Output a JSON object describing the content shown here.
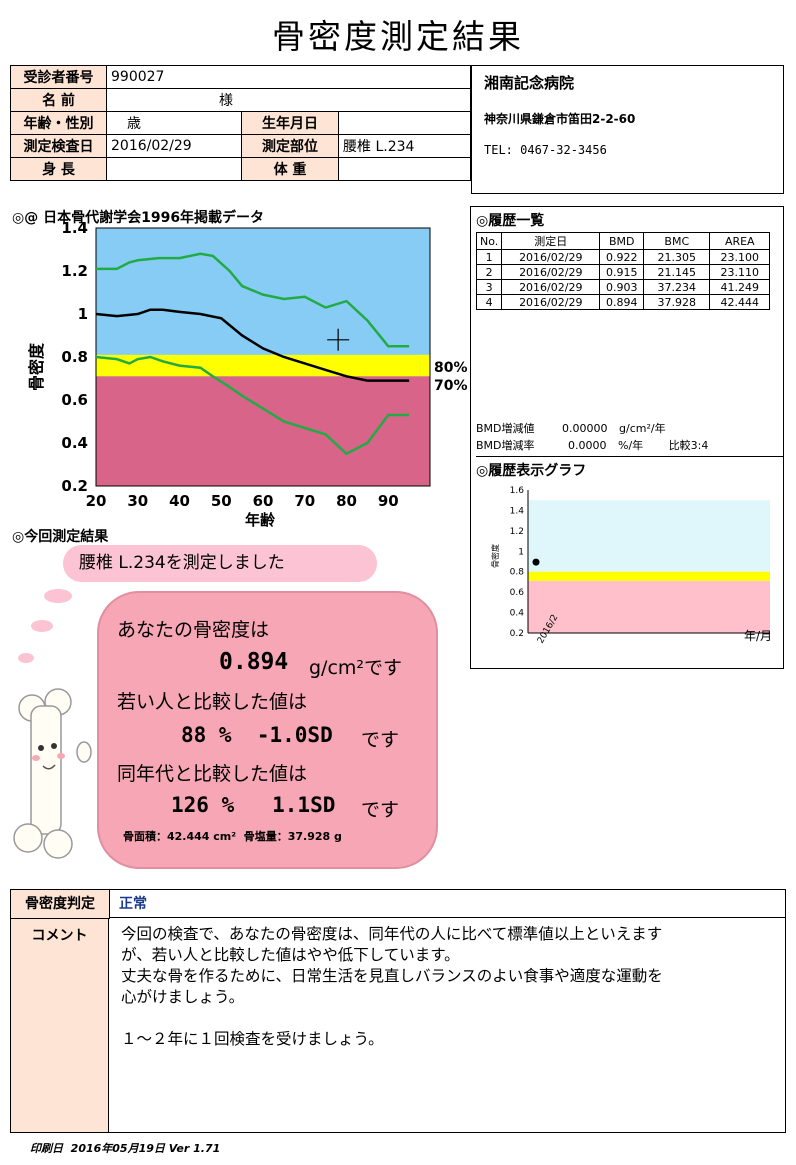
{
  "title": "骨密度測定結果",
  "patient": {
    "id_label": "受診者番号",
    "id_value": "990027",
    "name_label": "名 前",
    "name_suffix": "様",
    "age_label": "年齢・性別",
    "age_value": "歳",
    "dob_label": "生年月日",
    "dob_value": "",
    "date_label": "測定検査日",
    "date_value": "2016/02/29",
    "site_label": "測定部位",
    "site_value": "腰椎 L.234",
    "height_label": "身 長",
    "height_value": "",
    "weight_label": "体 重",
    "weight_value": ""
  },
  "hospital": {
    "name": "湘南記念病院",
    "address": "神奈川県鎌倉市笛田2-2-60",
    "tel": "TEL: 0467-32-3456"
  },
  "main_chart": {
    "title": "◎@ 日本骨代謝学会1996年掲載データ",
    "ylabel": "骨密度",
    "xlabel": "年齢",
    "band_80": "80%",
    "band_70": "70%"
  },
  "history": {
    "title": "◎履歴一覧",
    "headers": [
      "No.",
      "測定日",
      "BMD",
      "BMC",
      "AREA"
    ],
    "rows": [
      [
        "1",
        "2016/02/29",
        "0.922",
        "21.305",
        "23.100"
      ],
      [
        "2",
        "2016/02/29",
        "0.915",
        "21.145",
        "23.110"
      ],
      [
        "3",
        "2016/02/29",
        "0.903",
        "37.234",
        "41.249"
      ],
      [
        "4",
        "2016/02/29",
        "0.894",
        "37.928",
        "42.444"
      ]
    ],
    "bmd_change_label": "BMD増減値",
    "bmd_change_value": "0.00000",
    "bmd_change_unit": "g/cm²/年",
    "bmd_rate_label": "BMD増減率",
    "bmd_rate_value": "0.0000",
    "bmd_rate_unit": "%/年",
    "ratio": "比較3:4"
  },
  "history_chart": {
    "title": "◎履歴表示グラフ",
    "ylabel": "骨密度",
    "xunit": "年/月",
    "xtick": "2016/2"
  },
  "result": {
    "section": "◎今回測定結果",
    "measured": "腰椎 L.234を測定しました",
    "line1": "あなたの骨密度は",
    "bmd": "0.894",
    "bmd_unit": "g/cm²です",
    "line2": "若い人と比較した値は",
    "young": "88 %  -1.0SD",
    "young_suffix": "です",
    "line3": "同年代と比較した値は",
    "age": "126 %   1.1SD",
    "age_suffix": "です",
    "area": "骨面積：42.444 cm²  骨塩量：37.928 g"
  },
  "judgement": {
    "label": "骨密度判定",
    "value": "正常",
    "comment_label": "コメント",
    "comment": "今回の検査で、あなたの骨密度は、同年代の人に比べて標準値以上といえます\nが、若い人と比較した値はやや低下しています。\n丈夫な骨を作るために、日常生活を見直しバランスのよい食事や適度な運動を\n心がけましょう。\n\n１～２年に１回検査を受けましょう。"
  },
  "footer": "印刷日  2016年05月19日 Ver 1.71",
  "chart_data": [
    {
      "type": "line",
      "title": "日本骨代謝学会1996年掲載データ",
      "xlabel": "年齢",
      "ylabel": "骨密度",
      "xlim": [
        20,
        100
      ],
      "ylim": [
        0.2,
        1.4
      ],
      "x_ticks": [
        20,
        30,
        40,
        50,
        60,
        70,
        80,
        90
      ],
      "y_ticks": [
        0.2,
        0.4,
        0.6,
        0.8,
        1,
        1.2,
        1.4
      ],
      "bands": [
        {
          "name": "80%",
          "from": 0.71,
          "to": 0.81,
          "color": "#ffff00"
        },
        {
          "name": "70%",
          "from": 0.2,
          "to": 0.71,
          "color": "#d8648a"
        }
      ],
      "series": [
        {
          "color": "#22aa44",
          "x": [
            20,
            25,
            28,
            30,
            35,
            40,
            45,
            48,
            52,
            55,
            60,
            65,
            70,
            75,
            80,
            85,
            90,
            95
          ],
          "y": [
            1.21,
            1.21,
            1.24,
            1.25,
            1.26,
            1.26,
            1.28,
            1.27,
            1.2,
            1.13,
            1.09,
            1.07,
            1.08,
            1.03,
            1.06,
            0.97,
            0.85,
            0.85
          ]
        },
        {
          "color": "#000000",
          "x": [
            20,
            25,
            30,
            33,
            36,
            40,
            45,
            50,
            55,
            60,
            65,
            70,
            75,
            80,
            85,
            90,
            95
          ],
          "y": [
            1.0,
            0.99,
            1.0,
            1.02,
            1.02,
            1.01,
            1.0,
            0.98,
            0.9,
            0.84,
            0.8,
            0.77,
            0.74,
            0.71,
            0.69,
            0.69,
            0.69
          ]
        },
        {
          "color": "#22aa44",
          "x": [
            20,
            25,
            28,
            30,
            33,
            36,
            40,
            45,
            48,
            52,
            55,
            60,
            65,
            70,
            75,
            80,
            85,
            90,
            95
          ],
          "y": [
            0.8,
            0.79,
            0.77,
            0.79,
            0.8,
            0.78,
            0.76,
            0.75,
            0.71,
            0.66,
            0.62,
            0.56,
            0.5,
            0.47,
            0.44,
            0.35,
            0.4,
            0.53,
            0.53
          ]
        }
      ],
      "marker": {
        "x": 78,
        "y": 0.88
      }
    },
    {
      "type": "scatter",
      "title": "履歴表示グラフ",
      "ylabel": "骨密度",
      "xlabel": "年/月",
      "ylim": [
        0.2,
        1.6
      ],
      "y_ticks": [
        0.2,
        0.4,
        0.6,
        0.8,
        1,
        1.2,
        1.4,
        1.6
      ],
      "x_ticks": [
        "2016/2"
      ],
      "bands": [
        {
          "from": 0.8,
          "to": 1.5,
          "color": "#dff7fb"
        },
        {
          "from": 0.71,
          "to": 0.8,
          "color": "#ffff00"
        },
        {
          "from": 0.2,
          "to": 0.71,
          "color": "#ffc0cb"
        }
      ],
      "points": [
        {
          "x": "2016/2",
          "y": 0.894
        }
      ]
    }
  ]
}
